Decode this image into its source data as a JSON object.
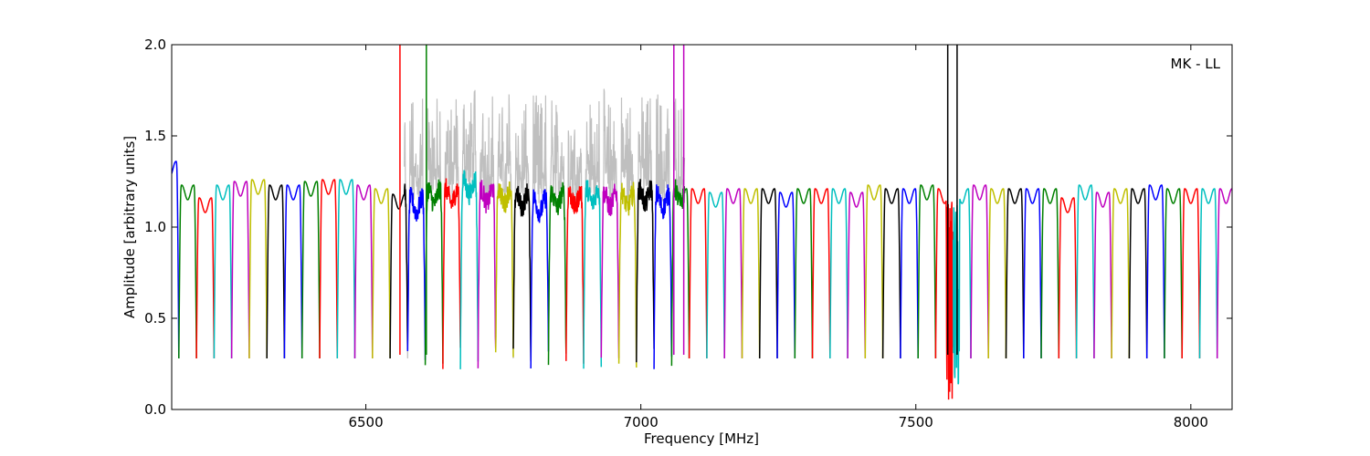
{
  "chart_data": {
    "type": "line",
    "title": "",
    "xlabel": "Frequency [MHz]",
    "ylabel": "Amplitude [arbitrary units]",
    "xlim": [
      6147,
      8075
    ],
    "ylim": [
      0.0,
      2.0
    ],
    "x_ticks": [
      6500,
      7000,
      7500,
      8000
    ],
    "x_tick_labels": [
      "6500",
      "7000",
      "7500",
      "8000"
    ],
    "y_ticks": [
      0.0,
      0.5,
      1.0,
      1.5,
      2.0
    ],
    "y_tick_labels": [
      "0.0",
      "0.5",
      "1.0",
      "1.5",
      "2.0"
    ],
    "grid": false,
    "annotation": "MK - LL",
    "annotation_position": "top-right",
    "channel_width_mhz": 32,
    "first_channel_start_mhz": 6128,
    "band_edge_level": 0.28,
    "color_cycle": [
      "#0000ff",
      "#008000",
      "#ff0000",
      "#00bfbf",
      "#bf00bf",
      "#bfbf00",
      "#000000"
    ],
    "background_series_color": "#bfbfbf",
    "channel_passband_levels": [
      1.35,
      1.22,
      1.15,
      1.22,
      1.24,
      1.25,
      1.22,
      1.22,
      1.24,
      1.25,
      1.25,
      1.22,
      1.2,
      1.17,
      1.15,
      1.2,
      1.2,
      1.25,
      1.2,
      1.2,
      1.18,
      1.15,
      1.18,
      1.18,
      1.2,
      1.18,
      1.18,
      1.2,
      1.17,
      1.2,
      1.2,
      1.18,
      1.2,
      1.2,
      1.2,
      1.18,
      1.2,
      1.2,
      1.2,
      1.18,
      1.22,
      1.2,
      1.2,
      1.22,
      1.2,
      1.2,
      1.22,
      1.2,
      1.2,
      1.2,
      1.2,
      1.15,
      1.22,
      1.18,
      1.2,
      1.2,
      1.22,
      1.2,
      1.2,
      1.2,
      1.2
    ],
    "rfi_spikes": [
      {
        "x": 6562,
        "amplitude": 2.0,
        "color": "#ff0000"
      },
      {
        "x": 6610,
        "amplitude": 2.0,
        "color": "#008000"
      },
      {
        "x": 7060,
        "amplitude": 2.0,
        "color": "#bf00bf"
      },
      {
        "x": 7078,
        "amplitude": 2.0,
        "color": "#bf00bf"
      },
      {
        "x": 7558,
        "amplitude": 2.0,
        "color": "#000000"
      },
      {
        "x": 7575,
        "amplitude": 2.0,
        "color": "#000000"
      }
    ],
    "noisy_region_mhz": [
      6570,
      7080
    ],
    "noisy_region_peak": 1.75,
    "dropout_region_mhz": [
      7555,
      7580
    ]
  }
}
